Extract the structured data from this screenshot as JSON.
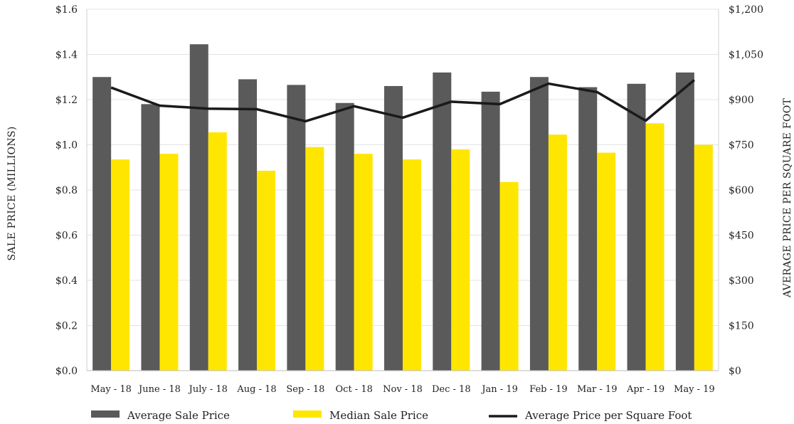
{
  "chart_data": {
    "type": "bar",
    "categories": [
      "May - 18",
      "June - 18",
      "July - 18",
      "Aug - 18",
      "Sep - 18",
      "Oct - 18",
      "Nov - 18",
      "Dec - 18",
      "Jan - 19",
      "Feb - 19",
      "Mar - 19",
      "Apr - 19",
      "May - 19"
    ],
    "series": [
      {
        "name": "Average Sale Price",
        "kind": "bar",
        "axis": "left",
        "color": "#5a5a5a",
        "values": [
          1.3,
          1.18,
          1.445,
          1.29,
          1.265,
          1.185,
          1.26,
          1.32,
          1.235,
          1.3,
          1.255,
          1.27,
          1.32
        ]
      },
      {
        "name": "Median Sale Price",
        "kind": "bar",
        "axis": "left",
        "color": "#ffe600",
        "values": [
          0.935,
          0.96,
          1.055,
          0.885,
          0.99,
          0.96,
          0.935,
          0.98,
          0.835,
          1.045,
          0.965,
          1.095,
          1.0
        ]
      },
      {
        "name": "Average Price per Square Foot",
        "kind": "line",
        "axis": "right",
        "color": "#1a1a1a",
        "values": [
          940,
          880,
          870,
          868,
          828,
          878,
          840,
          893,
          885,
          953,
          925,
          830,
          965
        ]
      }
    ],
    "ylabel": "SALE PRICE (MILLIONS)",
    "y2label": "AVERAGE PRICE PER SQUARE FOOT",
    "ylim": [
      0,
      1.6
    ],
    "y2lim": [
      0,
      1200
    ],
    "yticks": [
      "$0.0",
      "$0.2",
      "$0.4",
      "$0.6",
      "$0.8",
      "$1.0",
      "$1.2",
      "$1.4",
      "$1.6"
    ],
    "y2ticks": [
      "$0",
      "$150",
      "$300",
      "$450",
      "$600",
      "$750",
      "$900",
      "$1,050",
      "$1,200"
    ],
    "grid": true,
    "legend_position": "bottom"
  }
}
